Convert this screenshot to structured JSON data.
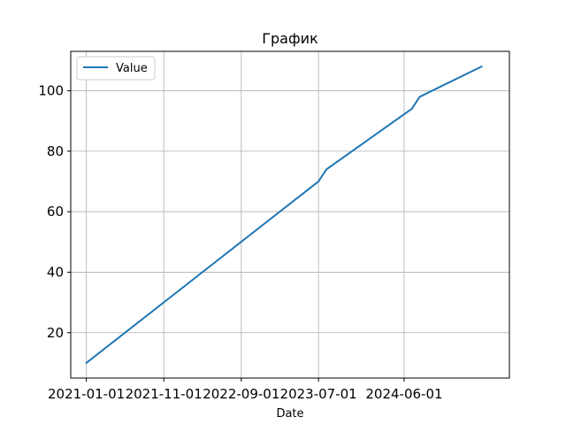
{
  "chart_data": {
    "type": "line",
    "title": "График",
    "xlabel": "Date",
    "ylabel": "",
    "x_type": "date",
    "xlim": [
      "2020-11-01",
      "2025-07-19"
    ],
    "ylim": [
      5,
      113
    ],
    "x_ticks": [
      "2021-01-01",
      "2021-11-01",
      "2022-09-01",
      "2023-07-01",
      "2024-06-01"
    ],
    "y_ticks": [
      20,
      40,
      60,
      80,
      100
    ],
    "grid": true,
    "legend_position": "upper-left",
    "series": [
      {
        "name": "Value",
        "color": "#1f77b4",
        "x": [
          "2021-01-01",
          "2023-07-01",
          "2023-08-01",
          "2024-07-01",
          "2024-08-01",
          "2025-04-01"
        ],
        "y": [
          10,
          70,
          74,
          94,
          98,
          108
        ]
      }
    ]
  }
}
